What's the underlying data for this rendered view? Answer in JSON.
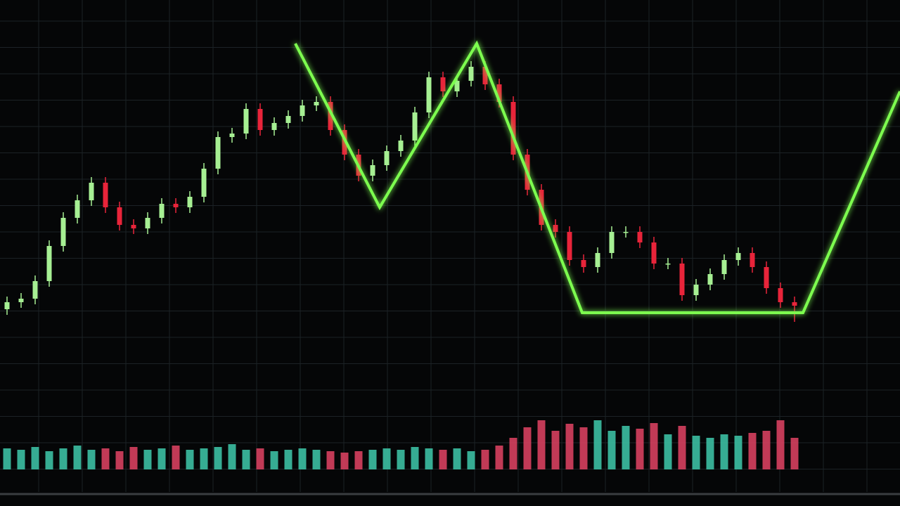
{
  "chart_data": [
    {
      "type": "candlestick",
      "xlim": [
        -0.5,
        63.5
      ],
      "ylim": [
        0,
        720
      ],
      "up_color": "#a6ef93",
      "down_color": "#e8243a",
      "grid": true,
      "open": [
        280,
        290,
        295,
        320,
        370,
        410,
        435,
        460,
        425,
        400,
        395,
        410,
        430,
        425,
        440,
        480,
        525,
        530,
        565,
        535,
        545,
        555,
        570,
        575,
        535,
        500,
        470,
        485,
        505,
        520,
        560,
        610,
        590,
        605,
        625,
        600,
        575,
        500,
        450,
        400,
        390,
        350,
        340,
        360,
        390,
        390,
        375,
        345,
        345,
        300,
        315,
        330,
        350,
        360,
        340,
        310,
        290
      ],
      "high": [
        298,
        303,
        328,
        378,
        418,
        443,
        468,
        468,
        433,
        408,
        418,
        438,
        438,
        448,
        488,
        533,
        538,
        573,
        573,
        553,
        563,
        578,
        583,
        583,
        543,
        508,
        493,
        513,
        528,
        568,
        618,
        618,
        613,
        633,
        633,
        608,
        583,
        508,
        458,
        408,
        398,
        358,
        368,
        398,
        398,
        398,
        383,
        353,
        353,
        323,
        338,
        358,
        368,
        368,
        348,
        318,
        298
      ],
      "low": [
        272,
        282,
        287,
        312,
        362,
        402,
        427,
        417,
        392,
        387,
        387,
        402,
        417,
        417,
        432,
        472,
        517,
        522,
        527,
        527,
        537,
        547,
        562,
        527,
        492,
        462,
        462,
        477,
        497,
        512,
        552,
        582,
        582,
        597,
        592,
        567,
        492,
        442,
        392,
        382,
        342,
        332,
        332,
        352,
        382,
        367,
        337,
        337,
        292,
        292,
        307,
        322,
        342,
        332,
        302,
        282,
        262
      ],
      "close": [
        290,
        295,
        320,
        370,
        410,
        435,
        460,
        425,
        400,
        395,
        410,
        430,
        425,
        440,
        480,
        525,
        530,
        565,
        535,
        545,
        555,
        570,
        575,
        535,
        500,
        470,
        485,
        505,
        520,
        560,
        610,
        590,
        605,
        625,
        600,
        575,
        500,
        450,
        400,
        390,
        350,
        340,
        360,
        390,
        390,
        375,
        345,
        345,
        300,
        315,
        330,
        350,
        360,
        340,
        310,
        290,
        285
      ],
      "levels": [
        275,
        658
      ],
      "level_color": "#6dff4a",
      "pattern": {
        "color": "#7dff4f",
        "x": [
          20.5,
          26.5,
          33.4,
          40.9,
          56.6,
          63.5
        ],
        "y": [
          658,
          425,
          658,
          275,
          275,
          590
        ]
      }
    },
    {
      "type": "bar",
      "xlim": [
        -0.5,
        63.5
      ],
      "ylim": [
        0,
        170
      ],
      "up_color": "#3cbfa3",
      "down_color": "#d6405f",
      "values": [
        30,
        28,
        32,
        26,
        30,
        34,
        28,
        30,
        26,
        32,
        28,
        30,
        34,
        28,
        30,
        32,
        36,
        28,
        30,
        26,
        28,
        30,
        28,
        26,
        24,
        26,
        28,
        30,
        28,
        32,
        30,
        28,
        30,
        26,
        28,
        34,
        45,
        60,
        70,
        55,
        65,
        60,
        70,
        55,
        62,
        58,
        66,
        50,
        62,
        48,
        45,
        50,
        48,
        52,
        55,
        70,
        45
      ]
    }
  ]
}
